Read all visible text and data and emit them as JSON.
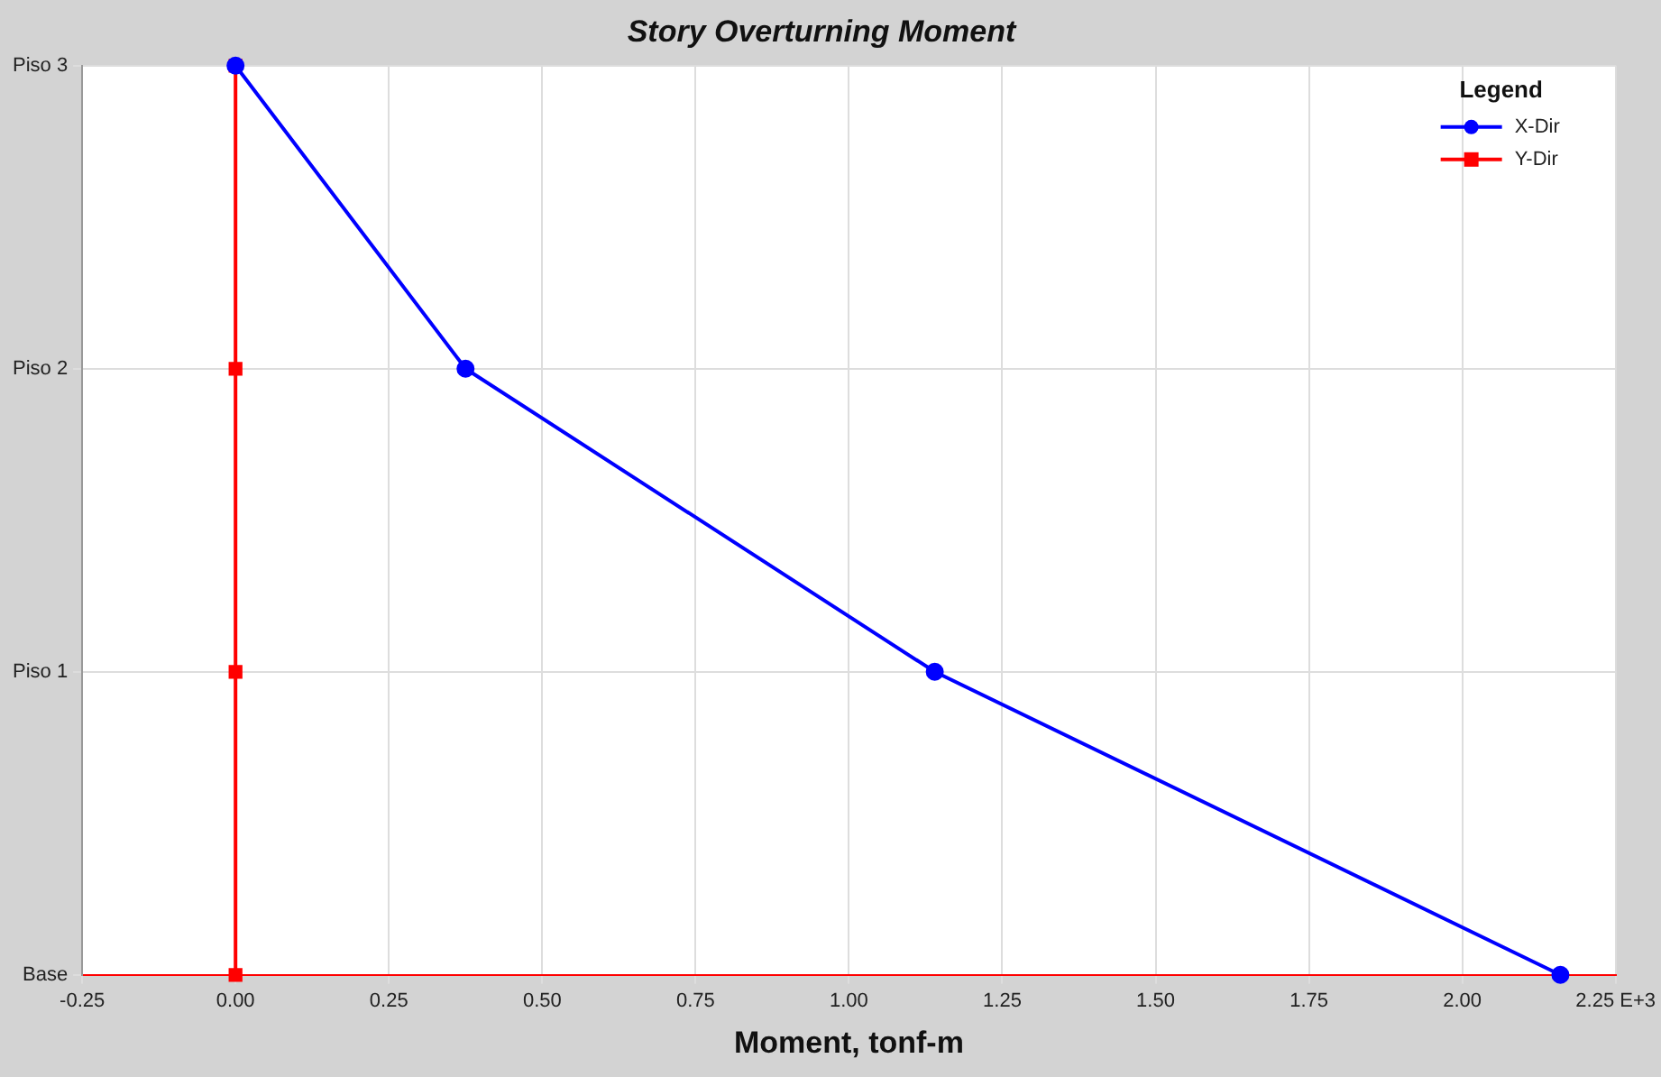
{
  "chart_data": {
    "type": "line",
    "orientation": "horizontal",
    "title": "Story Overturning Moment",
    "xlabel": "Moment, tonf-m",
    "legend_title": "Legend",
    "legend": "top right",
    "grid": true,
    "categories": [
      "Piso 3",
      "Piso 2",
      "Piso 1",
      "Base"
    ],
    "xlim": [
      -0.25,
      2.25
    ],
    "xticks": [
      {
        "value": -0.25,
        "label": "-0.25"
      },
      {
        "value": 0,
        "label": "0.00"
      },
      {
        "value": 0.25,
        "label": "0.25"
      },
      {
        "value": 0.5,
        "label": "0.50"
      },
      {
        "value": 0.75,
        "label": "0.75"
      },
      {
        "value": 1,
        "label": "1.00"
      },
      {
        "value": 1.25,
        "label": "1.25"
      },
      {
        "value": 1.5,
        "label": "1.50"
      },
      {
        "value": 1.75,
        "label": "1.75"
      },
      {
        "value": 2,
        "label": "2.00"
      },
      {
        "value": 2.25,
        "label": "2.25 E+3"
      }
    ],
    "series": [
      {
        "name": "X-Dir",
        "color": "#0000ff",
        "marker": "circle",
        "values": [
          0,
          0.375,
          1.14,
          2.16
        ]
      },
      {
        "name": "Y-Dir",
        "color": "#ff0000",
        "marker": "square",
        "values": [
          0,
          0,
          0,
          0
        ]
      }
    ]
  }
}
